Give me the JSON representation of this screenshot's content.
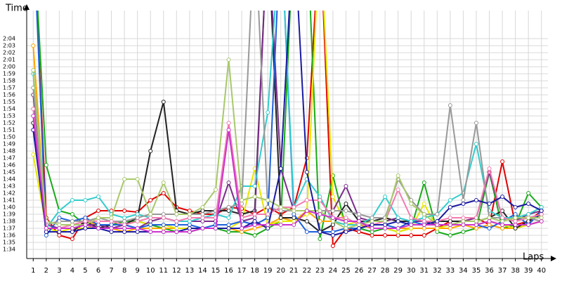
{
  "chart_data": {
    "type": "line",
    "y_label": "Time",
    "x_label": "Laps",
    "grid": true,
    "x": [
      1,
      2,
      3,
      4,
      5,
      6,
      7,
      8,
      9,
      10,
      11,
      12,
      13,
      14,
      15,
      16,
      17,
      18,
      19,
      20,
      21,
      22,
      23,
      24,
      25,
      26,
      27,
      28,
      29,
      30,
      31,
      32,
      33,
      34,
      35,
      36,
      37,
      38,
      39,
      40
    ],
    "xlim": [
      0.5,
      40.5
    ],
    "xticks": [
      1,
      2,
      3,
      4,
      5,
      6,
      7,
      8,
      9,
      10,
      11,
      12,
      13,
      14,
      15,
      16,
      17,
      18,
      19,
      20,
      21,
      22,
      23,
      24,
      25,
      26,
      27,
      28,
      29,
      30,
      31,
      32,
      33,
      34,
      35,
      36,
      37,
      38,
      39,
      40
    ],
    "ylim": [
      93,
      128
    ],
    "yticks": [
      {
        "value": 94,
        "label": "1:34"
      },
      {
        "value": 95,
        "label": "1:35"
      },
      {
        "value": 96,
        "label": "1:36"
      },
      {
        "value": 97,
        "label": "1:37"
      },
      {
        "value": 98,
        "label": "1:38"
      },
      {
        "value": 99,
        "label": "1:39"
      },
      {
        "value": 100,
        "label": "1:40"
      },
      {
        "value": 101,
        "label": "1:41"
      },
      {
        "value": 102,
        "label": "1:42"
      },
      {
        "value": 103,
        "label": "1:43"
      },
      {
        "value": 104,
        "label": "1:44"
      },
      {
        "value": 105,
        "label": "1:45"
      },
      {
        "value": 106,
        "label": "1:46"
      },
      {
        "value": 107,
        "label": "1:47"
      },
      {
        "value": 108,
        "label": "1:48"
      },
      {
        "value": 109,
        "label": "1:49"
      },
      {
        "value": 110,
        "label": "1:50"
      },
      {
        "value": 111,
        "label": "1:51"
      },
      {
        "value": 112,
        "label": "1:52"
      },
      {
        "value": 113,
        "label": "1:53"
      },
      {
        "value": 114,
        "label": "1:54"
      },
      {
        "value": 115,
        "label": "1:55"
      },
      {
        "value": 116,
        "label": "1:56"
      },
      {
        "value": 117,
        "label": "1:57"
      },
      {
        "value": 118,
        "label": "1:58"
      },
      {
        "value": 119,
        "label": "1:59"
      },
      {
        "value": 120,
        "label": "2:00"
      },
      {
        "value": 121,
        "label": "2:01"
      },
      {
        "value": 122,
        "label": "2:02"
      },
      {
        "value": 123,
        "label": "2:03"
      },
      {
        "value": 124,
        "label": "2:04"
      }
    ],
    "series": [
      {
        "color": "#e00000",
        "values": [
          140,
          98.5,
          96,
          95.5,
          98.5,
          99.5,
          99.5,
          99.5,
          99.3,
          101,
          102,
          100,
          99.5,
          99,
          99,
          100,
          99.8,
          99,
          100,
          99,
          100,
          107,
          140,
          94.5,
          97,
          96.5,
          96,
          96,
          96,
          96,
          96,
          97,
          98,
          98,
          98.5,
          97.5,
          106.5,
          97.5,
          98,
          99.5
        ]
      },
      {
        "color": "#1aaa1a",
        "values": [
          140,
          106,
          99.5,
          99,
          97.5,
          97,
          97.5,
          98,
          98,
          97.5,
          97,
          96.5,
          96.5,
          97,
          97,
          96.5,
          96.5,
          96,
          97,
          98,
          140,
          140,
          95.5,
          104.5,
          97,
          97,
          96.5,
          97,
          96.5,
          97,
          103.5,
          96.5,
          96,
          96.5,
          97,
          105,
          97,
          97.5,
          102,
          100
        ]
      },
      {
        "color": "#ffa500",
        "values": [
          123,
          97,
          97,
          97.5,
          98,
          97.5,
          97,
          96.5,
          97,
          97,
          97,
          97,
          97,
          97,
          97,
          97,
          96.5,
          97,
          97.5,
          98.5,
          98,
          99.5,
          98,
          98,
          97.5,
          97.5,
          97,
          97,
          97,
          97,
          97,
          97,
          97,
          97.5,
          97,
          97.5,
          97,
          97,
          97.5,
          98
        ]
      },
      {
        "color": "#e6e600",
        "values": [
          107.5,
          97,
          96.5,
          97,
          97,
          97.5,
          97.5,
          97.5,
          98,
          97.5,
          97.5,
          97,
          97,
          97,
          97,
          97,
          98,
          105.5,
          97.5,
          98,
          98,
          99,
          140,
          101.5,
          97.5,
          98,
          97,
          97,
          96.5,
          97,
          100.5,
          97,
          97.5,
          97.5,
          97.5,
          98,
          97.5,
          97,
          97.5,
          98
        ]
      },
      {
        "color": "#222222",
        "values": [
          112,
          96.5,
          96.5,
          96.5,
          98,
          97,
          97.5,
          97.5,
          98.5,
          108,
          115,
          99.5,
          99,
          99.5,
          99.5,
          99.5,
          99,
          99.5,
          140,
          98.5,
          98.5,
          98,
          96.5,
          97.5,
          100.5,
          98,
          98,
          98.5,
          98,
          98,
          98,
          98,
          98,
          98,
          98,
          98.5,
          99.5,
          97,
          98,
          99
        ]
      },
      {
        "color": "#7b2d8b",
        "values": [
          116,
          97.5,
          97,
          97,
          97.5,
          97.5,
          97,
          97.5,
          97,
          98,
          98.5,
          98,
          98,
          98,
          98,
          103.5,
          98,
          98.5,
          140,
          105.5,
          99.5,
          99.5,
          99.5,
          99.5,
          103,
          98.5,
          98,
          98,
          98.5,
          98,
          98,
          97.5,
          97.5,
          98,
          98.5,
          105,
          98.5,
          98,
          99,
          99.5
        ]
      },
      {
        "color": "#1e5fd9",
        "values": [
          140,
          96,
          98.5,
          98,
          98.5,
          97.5,
          97.5,
          97.5,
          97,
          97.5,
          97.5,
          97.5,
          97.5,
          97,
          97.5,
          97.5,
          98,
          97.5,
          98.5,
          140,
          99,
          96.5,
          96.5,
          96.5,
          97,
          97,
          97.5,
          97.5,
          97,
          98,
          97.5,
          97.5,
          97.5,
          97.5,
          97.5,
          97,
          98,
          99,
          97.5,
          99.5
        ]
      },
      {
        "color": "#33cccc",
        "values": [
          119,
          97,
          99.5,
          101,
          101,
          101.5,
          99,
          98.5,
          99,
          98.5,
          98.5,
          98,
          98,
          98.5,
          99,
          98.5,
          103,
          103,
          113.5,
          140,
          100,
          104,
          101.5,
          98,
          97.5,
          97.5,
          98.5,
          101.5,
          98.5,
          98,
          98.5,
          99,
          101,
          102,
          109,
          99.5,
          98.5,
          98.5,
          99,
          100
        ]
      },
      {
        "color": "#999999",
        "values": [
          117,
          97.5,
          98,
          98,
          98,
          98.5,
          98,
          98,
          98.5,
          99,
          99,
          99,
          99,
          99,
          99.5,
          100,
          100.5,
          140,
          100,
          99.5,
          99.5,
          99.5,
          99.5,
          99.5,
          99.5,
          99,
          98.5,
          98.5,
          104,
          101,
          99,
          99,
          114.5,
          101,
          112,
          98.5,
          98.5,
          98,
          98.5,
          98
        ]
      },
      {
        "color": "#f27cb0",
        "values": [
          114,
          97,
          97,
          97.5,
          98,
          98,
          98,
          97.5,
          98,
          98.5,
          98.5,
          98,
          98.5,
          98.5,
          98.5,
          112,
          98.5,
          99,
          99,
          100,
          100,
          101,
          101,
          98.5,
          98.5,
          97.5,
          97.5,
          98,
          102.5,
          98.5,
          98,
          98,
          98.5,
          98.5,
          98.5,
          105.5,
          98.5,
          98,
          98.5,
          99
        ]
      },
      {
        "color": "#a8c96a",
        "values": [
          119.5,
          98,
          97.5,
          97.5,
          97.5,
          98.5,
          98.5,
          104,
          104,
          99,
          103.5,
          99,
          99,
          100,
          102.5,
          121,
          101,
          101.5,
          101,
          100,
          99.5,
          99.5,
          99.5,
          98,
          97,
          97.5,
          98,
          98,
          104.5,
          100.5,
          99,
          97.5,
          97.5,
          98,
          98,
          98.5,
          98,
          98.5,
          98.5,
          98.5
        ]
      },
      {
        "color": "#1a1aa0",
        "values": [
          111,
          96.5,
          96.5,
          96.5,
          97,
          97,
          96.5,
          96.5,
          96.5,
          96.5,
          96.5,
          96.5,
          97,
          97,
          97,
          97,
          97,
          98,
          97,
          105.5,
          140,
          105,
          96.5,
          96,
          96.5,
          97,
          97.5,
          97.5,
          98,
          97.5,
          97.5,
          98,
          100,
          100.5,
          101,
          100.5,
          101.5,
          100,
          100.5,
          99.5
        ]
      },
      {
        "color": "#cc33cc",
        "values": [
          113,
          97,
          97,
          97,
          97.5,
          97,
          97,
          97,
          97,
          96.5,
          96.5,
          96.5,
          96.5,
          97,
          97,
          111,
          97,
          97.5,
          97.5,
          97.5,
          97.5,
          99.5,
          99,
          98.5,
          98,
          98,
          97,
          97,
          97,
          97.5,
          97.5,
          97.5,
          97.5,
          97.5,
          97.5,
          98,
          97.5,
          97.5,
          97.5,
          98
        ]
      }
    ]
  }
}
